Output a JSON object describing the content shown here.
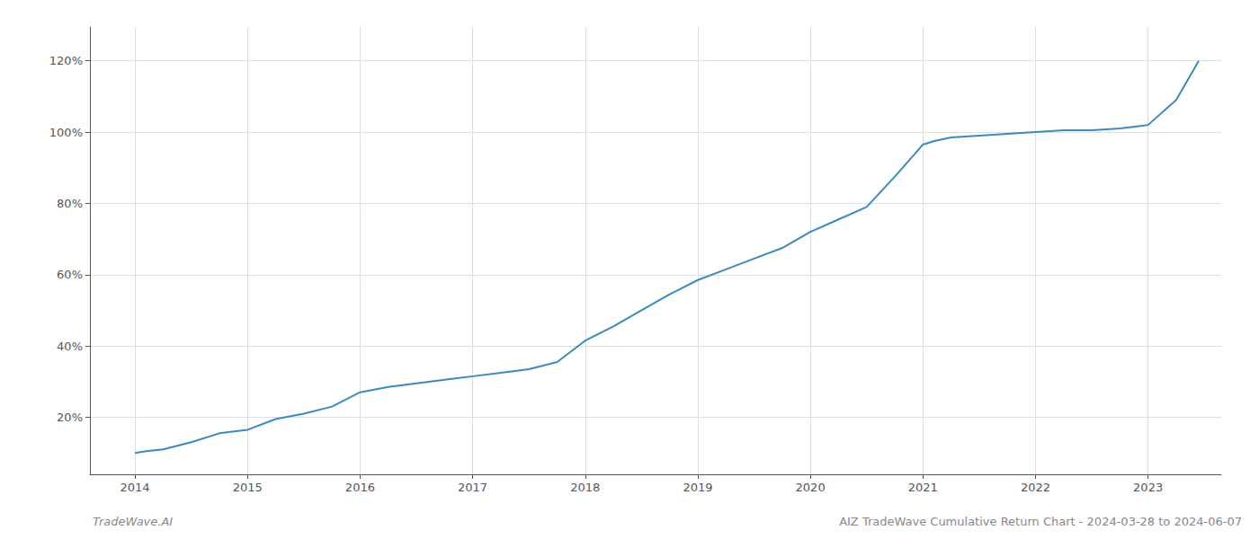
{
  "chart_data": {
    "type": "line",
    "title": "AIZ TradeWave Cumulative Return Chart - 2024-03-28 to 2024-06-07",
    "annotations": [
      "TradeWave.AI"
    ],
    "x": [
      2014.0,
      2014.1,
      2014.25,
      2014.5,
      2014.75,
      2015.0,
      2015.25,
      2015.5,
      2015.75,
      2016.0,
      2016.25,
      2016.5,
      2016.75,
      2017.0,
      2017.25,
      2017.5,
      2017.75,
      2018.0,
      2018.25,
      2018.5,
      2018.75,
      2019.0,
      2019.25,
      2019.5,
      2019.75,
      2020.0,
      2020.25,
      2020.5,
      2020.75,
      2021.0,
      2021.1,
      2021.25,
      2021.5,
      2021.75,
      2022.0,
      2022.25,
      2022.5,
      2022.75,
      2023.0,
      2023.25,
      2023.45
    ],
    "values": [
      0.1,
      0.105,
      0.11,
      0.13,
      0.155,
      0.165,
      0.195,
      0.21,
      0.23,
      0.27,
      0.285,
      0.295,
      0.305,
      0.315,
      0.325,
      0.335,
      0.355,
      0.415,
      0.455,
      0.5,
      0.545,
      0.585,
      0.615,
      0.645,
      0.675,
      0.72,
      0.755,
      0.79,
      0.875,
      0.965,
      0.975,
      0.985,
      0.99,
      0.995,
      1.0,
      1.005,
      1.005,
      1.01,
      1.02,
      1.09,
      1.2
    ],
    "color": "#3a8abf",
    "xlim": [
      2013.6,
      2023.65
    ],
    "ylim": [
      0.04,
      1.295
    ],
    "xticks": [
      2014,
      2015,
      2016,
      2017,
      2018,
      2019,
      2020,
      2021,
      2022,
      2023
    ],
    "yticks": [
      {
        "value": 0.2,
        "label": "20%"
      },
      {
        "value": 0.4,
        "label": "40%"
      },
      {
        "value": 0.6,
        "label": "60%"
      },
      {
        "value": 0.8,
        "label": "80%"
      },
      {
        "value": 1.0,
        "label": "100%"
      },
      {
        "value": 1.2,
        "label": "120%"
      }
    ],
    "grid": true
  }
}
